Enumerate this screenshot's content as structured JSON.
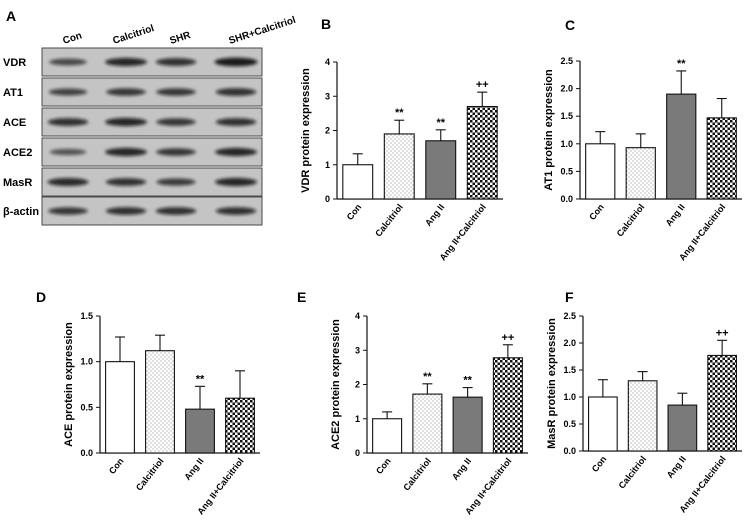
{
  "panel_letters": [
    "A",
    "B",
    "C",
    "D",
    "E",
    "F"
  ],
  "blot": {
    "lanes": [
      "Con",
      "Calcitriol",
      "SHR",
      "SHR+Calcitriol"
    ],
    "proteins": [
      "VDR",
      "AT1",
      "ACE",
      "ACE2",
      "MasR",
      "β-actin"
    ],
    "band_intensity": [
      [
        0.55,
        0.85,
        0.75,
        0.95
      ],
      [
        0.6,
        0.7,
        0.7,
        0.75
      ],
      [
        0.75,
        0.85,
        0.7,
        0.75
      ],
      [
        0.45,
        0.85,
        0.7,
        0.85
      ],
      [
        0.8,
        0.75,
        0.65,
        0.85
      ],
      [
        0.7,
        0.75,
        0.75,
        0.75
      ]
    ]
  },
  "chart_data": [
    {
      "panel": "B",
      "type": "bar",
      "categories": [
        "Con",
        "Calcitriol",
        "Ang II",
        "Ang II+Calcitriol"
      ],
      "values": [
        1.0,
        1.9,
        1.7,
        2.7
      ],
      "errors": [
        0.32,
        0.4,
        0.32,
        0.42
      ],
      "annotations": [
        "",
        "**",
        "**",
        "++"
      ],
      "ylabel": "VDR protein expression",
      "ylim": [
        0,
        4
      ],
      "yticks": [
        "0",
        "1",
        "2",
        "3",
        "4"
      ]
    },
    {
      "panel": "C",
      "type": "bar",
      "categories": [
        "Con",
        "Calcitriol",
        "Ang II",
        "Ang II+Calcitriol"
      ],
      "values": [
        1.0,
        0.93,
        1.9,
        1.47
      ],
      "errors": [
        0.22,
        0.25,
        0.42,
        0.35
      ],
      "annotations": [
        "",
        "",
        "**",
        ""
      ],
      "ylabel": "AT1 protein expression",
      "ylim": [
        0,
        2.5
      ],
      "yticks": [
        "0.0",
        "0.5",
        "1.0",
        "1.5",
        "2.0",
        "2.5"
      ]
    },
    {
      "panel": "D",
      "type": "bar",
      "categories": [
        "Con",
        "Calcitriol",
        "Ang II",
        "Ang II+Calcitriol"
      ],
      "values": [
        1.0,
        1.12,
        0.48,
        0.6
      ],
      "errors": [
        0.27,
        0.17,
        0.25,
        0.3
      ],
      "annotations": [
        "",
        "",
        "**",
        ""
      ],
      "ylabel": "ACE protein expression",
      "ylim": [
        0,
        1.5
      ],
      "yticks": [
        "0.0",
        "0.5",
        "1.0",
        "1.5"
      ]
    },
    {
      "panel": "E",
      "type": "bar",
      "categories": [
        "Con",
        "Calcitriol",
        "Ang II",
        "Ang II+Calcitriol"
      ],
      "values": [
        1.0,
        1.72,
        1.63,
        2.78
      ],
      "errors": [
        0.2,
        0.3,
        0.28,
        0.38
      ],
      "annotations": [
        "",
        "**",
        "**",
        "++"
      ],
      "ylabel": "ACE2 protein expression",
      "ylim": [
        0,
        4
      ],
      "yticks": [
        "0",
        "1",
        "2",
        "3",
        "4"
      ]
    },
    {
      "panel": "F",
      "type": "bar",
      "categories": [
        "Con",
        "Calcitriol",
        "Ang II",
        "Ang II+Calcitriol"
      ],
      "values": [
        1.0,
        1.3,
        0.85,
        1.77
      ],
      "errors": [
        0.32,
        0.17,
        0.22,
        0.28
      ],
      "annotations": [
        "",
        "",
        "",
        "++"
      ],
      "ylabel": "MasR protein expression",
      "ylim": [
        0,
        2.5
      ],
      "yticks": [
        "0.0",
        "0.5",
        "1.0",
        "1.5",
        "2.0",
        "2.5"
      ]
    }
  ]
}
